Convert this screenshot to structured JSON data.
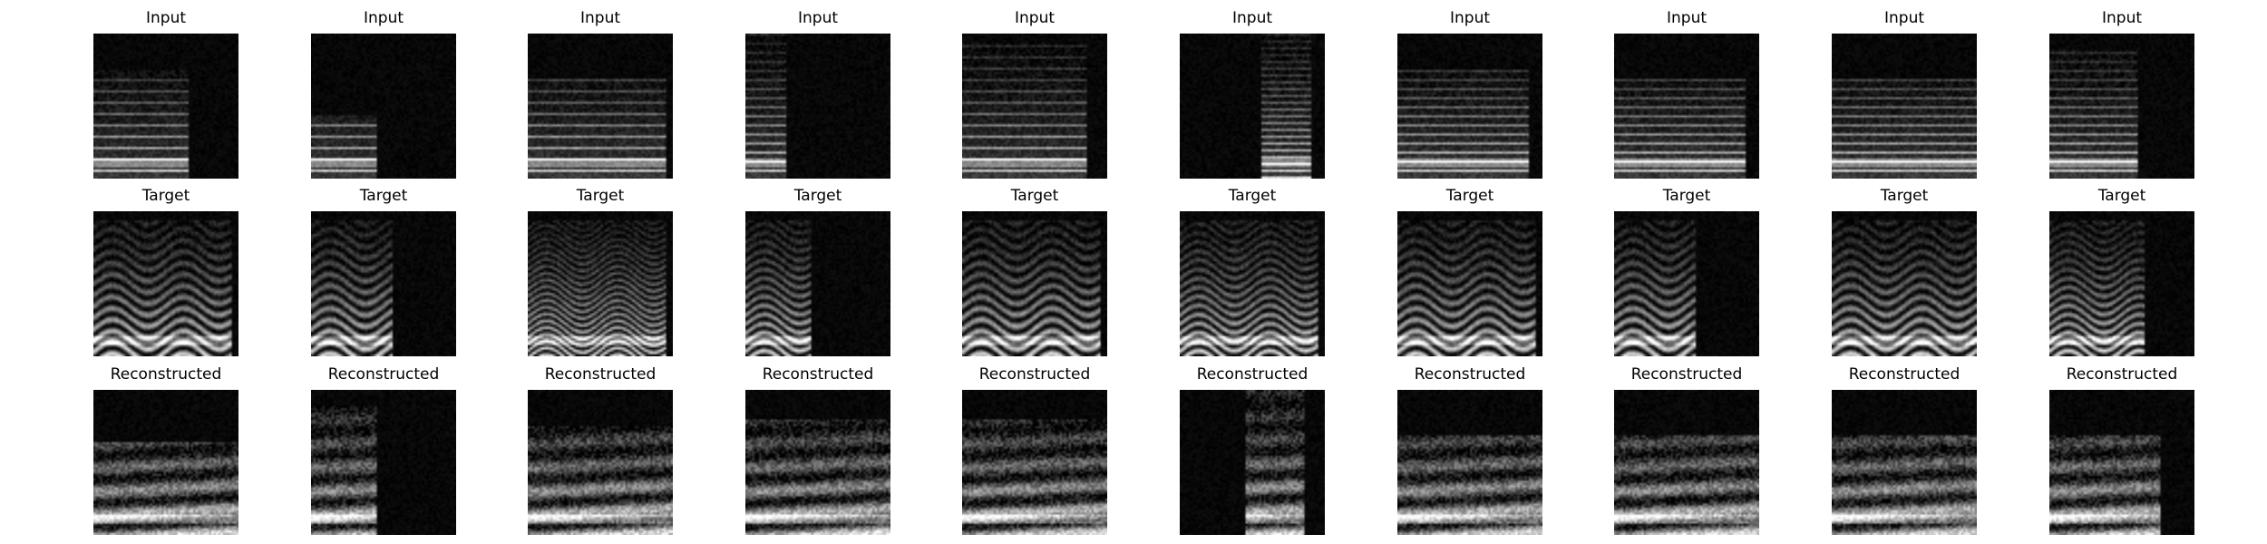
{
  "rows": [
    {
      "key": "input",
      "label": "Input",
      "panels": [
        {
          "id": "input-1"
        },
        {
          "id": "input-2"
        },
        {
          "id": "input-3"
        },
        {
          "id": "input-4"
        },
        {
          "id": "input-5"
        },
        {
          "id": "input-6"
        },
        {
          "id": "input-7"
        },
        {
          "id": "input-8"
        },
        {
          "id": "input-9"
        },
        {
          "id": "input-10"
        }
      ]
    },
    {
      "key": "target",
      "label": "Target",
      "panels": [
        {
          "id": "target-1"
        },
        {
          "id": "target-2"
        },
        {
          "id": "target-3"
        },
        {
          "id": "target-4"
        },
        {
          "id": "target-5"
        },
        {
          "id": "target-6"
        },
        {
          "id": "target-7"
        },
        {
          "id": "target-8"
        },
        {
          "id": "target-9"
        },
        {
          "id": "target-10"
        }
      ]
    },
    {
      "key": "reconstructed",
      "label": "Reconstructed",
      "panels": [
        {
          "id": "reconstructed-1"
        },
        {
          "id": "reconstructed-2"
        },
        {
          "id": "reconstructed-3"
        },
        {
          "id": "reconstructed-4"
        },
        {
          "id": "reconstructed-5"
        },
        {
          "id": "reconstructed-6"
        },
        {
          "id": "reconstructed-7"
        },
        {
          "id": "reconstructed-8"
        },
        {
          "id": "reconstructed-9"
        },
        {
          "id": "reconstructed-10"
        }
      ]
    }
  ],
  "colors": {
    "background": "#ffffff",
    "panel": "#000000",
    "text": "#000000"
  }
}
